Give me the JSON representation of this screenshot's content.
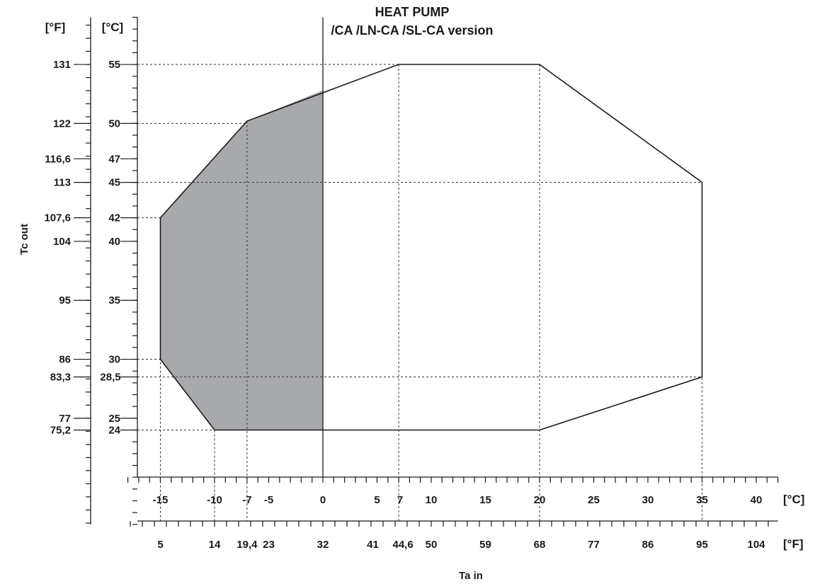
{
  "chart_data": {
    "type": "area",
    "title": "HEAT PUMP",
    "subtitle": "/CA  /LN-CA  /SL-CA  version",
    "xlabel": "Ta in",
    "ylabel": "Tc out",
    "x_units": {
      "primary": "[°C]",
      "secondary": "[°F]"
    },
    "y_units": {
      "primary": "[°C]",
      "secondary": "[°F]"
    },
    "xlim": [
      -18,
      42
    ],
    "ylim": [
      16,
      59
    ],
    "x_ticks_c": [
      "-15",
      "-10",
      "-7",
      "-5",
      "0",
      "5",
      "7",
      "10",
      "15",
      "20",
      "25",
      "30",
      "35",
      "40"
    ],
    "x_ticks_f": [
      "5",
      "14",
      "19,4",
      "23",
      "32",
      "41",
      "44,6",
      "50",
      "59",
      "68",
      "77",
      "86",
      "95",
      "104"
    ],
    "y_ticks_c": [
      "55",
      "50",
      "47",
      "45",
      "42",
      "40",
      "35",
      "30",
      "28,5",
      "25",
      "24"
    ],
    "y_ticks_f": [
      "131",
      "122",
      "116,6",
      "113",
      "107,6",
      "104",
      "95",
      "86",
      "83,3",
      "77",
      "75,2"
    ],
    "series": [
      {
        "kind": "envelope-outline",
        "x": [
          -15,
          -7,
          7,
          20,
          35,
          35,
          20,
          -10,
          -15,
          -15
        ],
        "y": [
          42,
          50.2,
          55,
          55,
          45,
          28.5,
          24,
          24,
          30,
          42
        ]
      },
      {
        "kind": "shaded-region",
        "color": "#a8a9ad",
        "x": [
          -15,
          -7,
          0,
          0,
          -10,
          -15
        ],
        "y": [
          42,
          50.2,
          52.8,
          24,
          24,
          30
        ]
      }
    ],
    "reference_lines": {
      "horizontal_c": [
        55,
        50,
        45,
        42,
        30,
        28.5,
        24
      ],
      "vertical_c": [
        -15,
        -10,
        -7,
        7,
        20,
        35
      ]
    },
    "grid": false,
    "legend": "none"
  }
}
